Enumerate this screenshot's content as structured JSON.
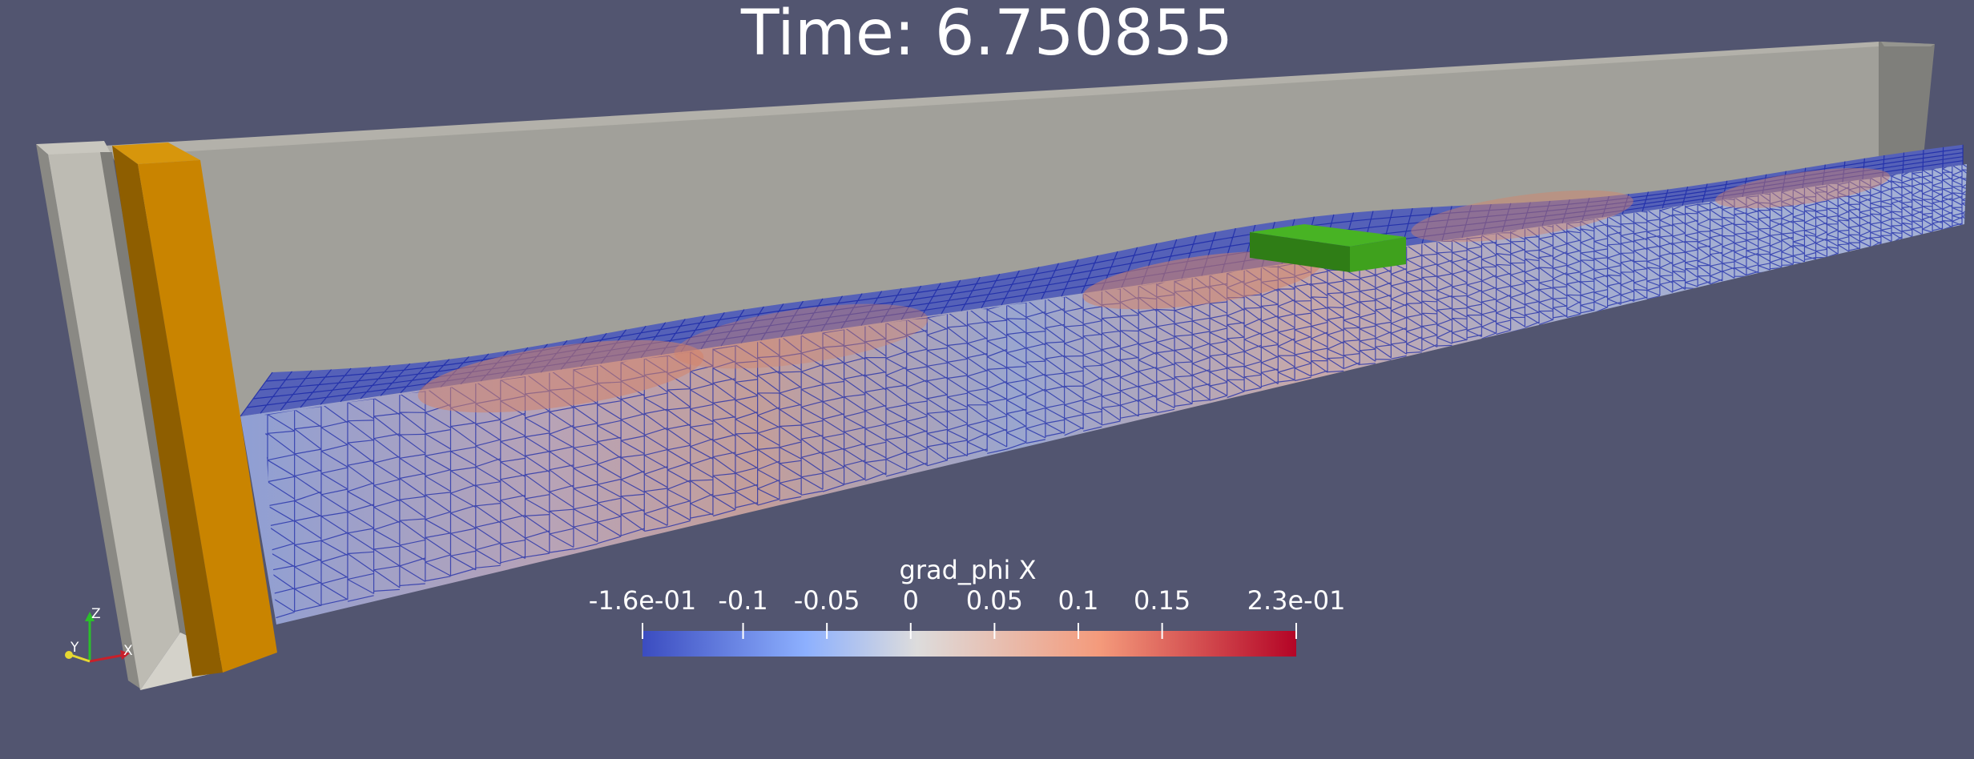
{
  "title": "Time: 6.750855",
  "colorbar": {
    "title": "grad_phi X",
    "min": -0.16,
    "max": 0.23,
    "ticks": [
      {
        "label": "-1.6e-01",
        "value": -0.16
      },
      {
        "label": "-0.1",
        "value": -0.1
      },
      {
        "label": "-0.05",
        "value": -0.05
      },
      {
        "label": "0",
        "value": 0
      },
      {
        "label": "0.05",
        "value": 0.05
      },
      {
        "label": "0.1",
        "value": 0.1
      },
      {
        "label": "0.15",
        "value": 0.15
      },
      {
        "label": "2.3e-01",
        "value": 0.23
      }
    ],
    "colors": [
      "#3b4cc0",
      "#8db0fe",
      "#dddcdc",
      "#f49a7b",
      "#b40426"
    ]
  },
  "axes": {
    "x": "X",
    "y": "Y",
    "z": "Z"
  },
  "colors": {
    "background": "#525570",
    "tank_wall": "#a1a09a",
    "paddle": "#c98400",
    "floating_box": "#3ea81c",
    "mesh_lines": "#1c2aa8"
  }
}
